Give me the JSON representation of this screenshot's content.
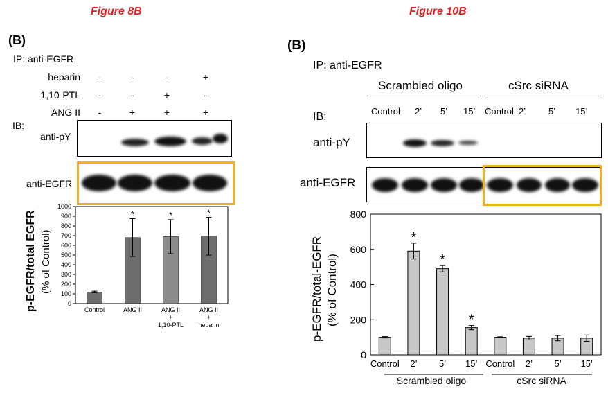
{
  "figure_left": {
    "caption": "Figure 8B",
    "panel": "(B)",
    "ip_label": "IP: anti-EGFR",
    "treatments": [
      {
        "label": "heparin",
        "signs": [
          "-",
          "-",
          "-",
          "+"
        ]
      },
      {
        "label": "1,10-PTL",
        "signs": [
          "-",
          "-",
          "+",
          "-"
        ]
      },
      {
        "label": "ANG II",
        "signs": [
          "-",
          "+",
          "+",
          "+"
        ]
      }
    ],
    "ib_label": "IB:",
    "blot_top_label": "anti-pY",
    "blot_bottom_label": "anti-EGFR",
    "highlight_color": "#f2b01e"
  },
  "figure_right": {
    "caption": "Figure 10B",
    "panel": "(B)",
    "ip_label": "IP: anti-EGFR",
    "group_a": "Scrambled oligo",
    "group_b": "cSrc siRNA",
    "lanes": [
      "Control",
      "2’",
      "5’",
      "15’",
      "Control",
      "2’",
      "5’",
      "15’"
    ],
    "ib_label": "IB:",
    "blot_top_label": "anti-pY",
    "blot_bottom_label": "anti-EGFR",
    "highlight_color": "#f2b01e"
  },
  "chart_data": [
    {
      "type": "bar",
      "ylabel": "p-EGFR/total EGFR",
      "ylabel2": "(% of Control)",
      "categories": [
        "Control",
        "ANG II",
        "ANG II + 1,10-PTL",
        "ANG II + heparin"
      ],
      "category_lines": [
        [
          "Control"
        ],
        [
          "ANG II"
        ],
        [
          "ANG II",
          "+",
          "1,10-PTL"
        ],
        [
          "ANG II",
          "+",
          "heparin"
        ]
      ],
      "values": [
        120,
        680,
        690,
        695
      ],
      "errors": [
        8,
        195,
        175,
        195
      ],
      "significance": [
        "",
        "*",
        "*",
        "*"
      ],
      "ylim": [
        0,
        1000
      ],
      "yticks": [
        "0",
        "100",
        "200",
        "300",
        "400",
        "500",
        "600",
        "700",
        "800",
        "900",
        "1000"
      ],
      "bar_colors": [
        "#6e6e6e",
        "#6e6e6e",
        "#8c8c8c",
        "#6e6e6e"
      ]
    },
    {
      "type": "bar",
      "ylabel": "p-EGFR/total-EGFR",
      "ylabel2": "(% of Control)",
      "categories": [
        "Control",
        "2’",
        "5’",
        "15’",
        "Control",
        "2’",
        "5’",
        "15’"
      ],
      "groups": [
        "Scrambled oligo",
        "cSrc siRNA"
      ],
      "values": [
        100,
        590,
        490,
        155,
        100,
        95,
        95,
        95
      ],
      "errors": [
        4,
        45,
        18,
        12,
        3,
        10,
        15,
        18
      ],
      "significance": [
        "",
        "*",
        "*",
        "*",
        "",
        "",
        "",
        ""
      ],
      "ylim": [
        0,
        800
      ],
      "yticks": [
        "0",
        "200",
        "400",
        "600",
        "800"
      ],
      "bar_color": "#c8c8c8"
    }
  ]
}
